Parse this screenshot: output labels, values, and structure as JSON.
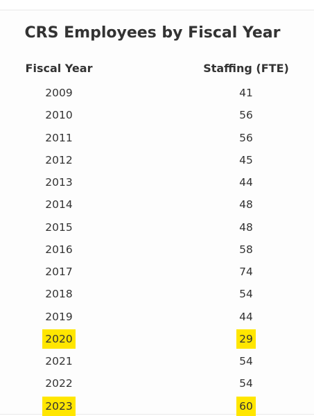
{
  "chart_data": {
    "type": "table",
    "title": "CRS Employees by Fiscal Year",
    "columns": [
      "Fiscal Year",
      "Staffing (FTE)"
    ],
    "rows": [
      {
        "year": "2009",
        "fte": 41,
        "highlight": false
      },
      {
        "year": "2010",
        "fte": 56,
        "highlight": false
      },
      {
        "year": "2011",
        "fte": 56,
        "highlight": false
      },
      {
        "year": "2012",
        "fte": 45,
        "highlight": false
      },
      {
        "year": "2013",
        "fte": 44,
        "highlight": false
      },
      {
        "year": "2014",
        "fte": 48,
        "highlight": false
      },
      {
        "year": "2015",
        "fte": 48,
        "highlight": false
      },
      {
        "year": "2016",
        "fte": 58,
        "highlight": false
      },
      {
        "year": "2017",
        "fte": 74,
        "highlight": false
      },
      {
        "year": "2018",
        "fte": 54,
        "highlight": false
      },
      {
        "year": "2019",
        "fte": 44,
        "highlight": false
      },
      {
        "year": "2020",
        "fte": 29,
        "highlight": true
      },
      {
        "year": "2021",
        "fte": 54,
        "highlight": false
      },
      {
        "year": "2022",
        "fte": 54,
        "highlight": false
      },
      {
        "year": "2023",
        "fte": 60,
        "highlight": true
      }
    ],
    "highlight_color": "#ffe600"
  }
}
